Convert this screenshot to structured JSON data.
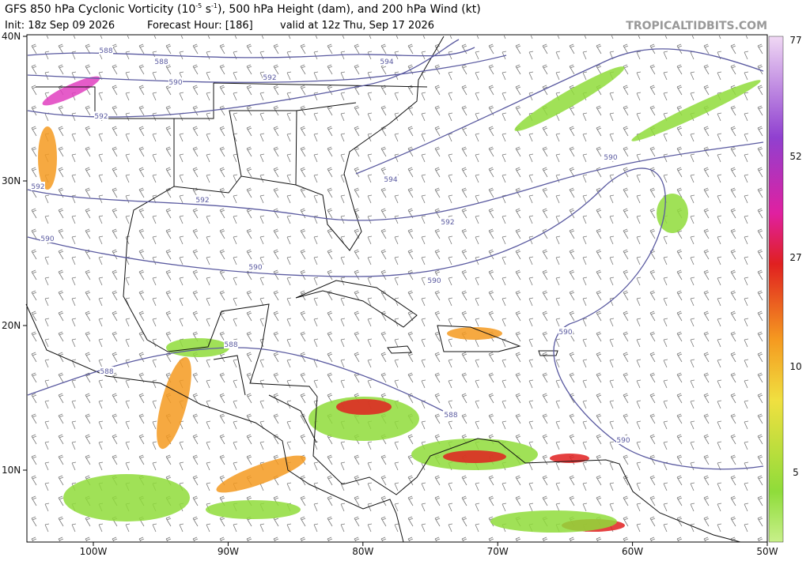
{
  "header": {
    "title": "GFS 850 hPa Cyclonic Vorticity (10",
    "title_exp1": "-5",
    "title_mid": " s",
    "title_exp2": "-1",
    "title_end": "), 500 hPa Height (dam), and 200 hPa Wind (kt)",
    "init": "Init: 18z Sep 09 2026",
    "forecast_hour": "Forecast Hour: [186]",
    "valid": "valid at 12z Thu, Sep 17 2026",
    "watermark": "TROPICALTIDBITS.COM"
  },
  "lat_labels": [
    "40N",
    "30N",
    "20N",
    "10N"
  ],
  "lon_labels": [
    "100W",
    "90W",
    "80W",
    "70W",
    "60W",
    "50W"
  ],
  "colorbar_labels": [
    "77",
    "52",
    "27",
    "10",
    "5"
  ],
  "contour_labels": [
    "588",
    "588",
    "590",
    "594",
    "592",
    "592",
    "592",
    "592",
    "594",
    "590",
    "592",
    "590",
    "590",
    "590",
    "590",
    "588",
    "588",
    "588",
    "590"
  ]
}
